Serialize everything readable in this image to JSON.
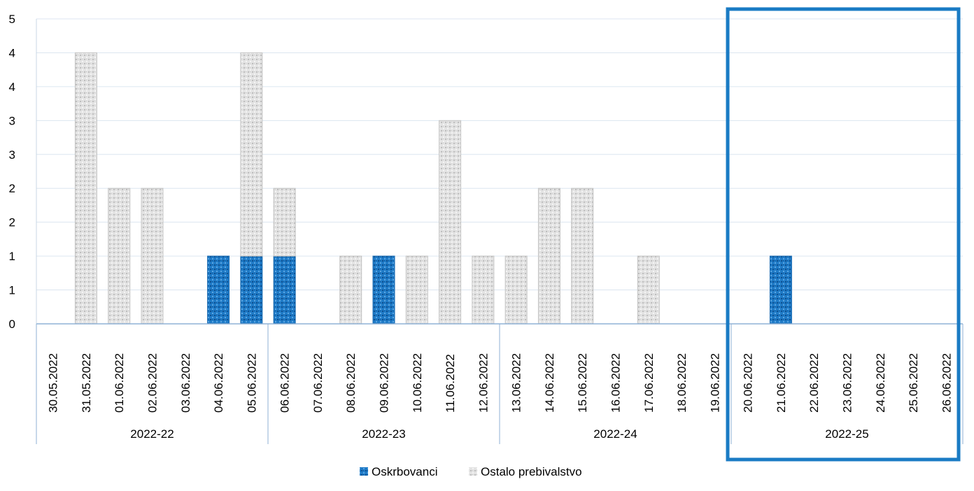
{
  "chart_data": {
    "type": "bar",
    "stacked": true,
    "categories": [
      "30.05.2022",
      "31.05.2022",
      "01.06.2022",
      "02.06.2022",
      "03.06.2022",
      "04.06.2022",
      "05.06.2022",
      "06.06.2022",
      "07.06.2022",
      "08.06.2022",
      "09.06.2022",
      "10.06.2022",
      "11.06.2022",
      "12.06.2022",
      "13.06.2022",
      "14.06.2022",
      "15.06.2022",
      "16.06.2022",
      "17.06.2022",
      "18.06.2022",
      "19.06.2022",
      "20.06.2022",
      "21.06.2022",
      "22.06.2022",
      "23.06.2022",
      "24.06.2022",
      "25.06.2022",
      "26.06.2022"
    ],
    "groups": [
      {
        "label": "2022-22",
        "count": 7
      },
      {
        "label": "2022-23",
        "count": 7
      },
      {
        "label": "2022-24",
        "count": 7
      },
      {
        "label": "2022-25",
        "count": 7
      }
    ],
    "series": [
      {
        "name": "Oskrbovanci",
        "color": "#1f7ac6",
        "values": [
          0,
          0,
          0,
          0,
          0,
          1,
          1,
          1,
          0,
          0,
          1,
          0,
          0,
          0,
          0,
          0,
          0,
          0,
          0,
          0,
          0,
          0,
          1,
          0,
          0,
          0,
          0,
          0
        ]
      },
      {
        "name": "Ostalo prebivalstvo",
        "color": "#d9d9d9",
        "values": [
          0,
          4,
          2,
          2,
          0,
          0,
          3,
          1,
          0,
          1,
          0,
          1,
          3,
          1,
          1,
          2,
          2,
          0,
          1,
          0,
          0,
          0,
          0,
          0,
          0,
          0,
          0,
          0
        ]
      }
    ],
    "ylim": [
      0,
      4
    ],
    "y_ticks": [
      "0",
      "1",
      "1",
      "2",
      "2",
      "3",
      "3",
      "4",
      "4",
      "5"
    ],
    "grid": true,
    "legend_position": "bottom",
    "highlight_group": "2022-25",
    "highlight_color": "#1a7bc4"
  }
}
